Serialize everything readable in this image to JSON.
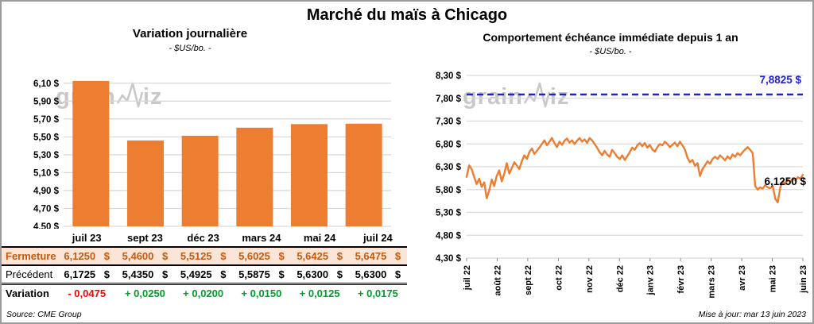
{
  "title": "Marché du maïs à Chicago",
  "watermark": {
    "prefix": "grain",
    "suffix": "iz"
  },
  "colors": {
    "bar": "#ED7D31",
    "line": "#ED7D31",
    "reference": "#2222CC",
    "close_text": "#C55A11",
    "close_bg": "#FCE4D6",
    "positive": "#009E2D",
    "negative": "#FF0000",
    "grid": "#D9D9D9",
    "watermark": "#C8C8C8"
  },
  "left_panel": {
    "chart_title": "Variation  journalière",
    "chart_subtitle": "- $US/bo. -",
    "source": "Source: CME Group",
    "table": {
      "columns": [
        "juil 23",
        "sept 23",
        "déc 23",
        "mars 24",
        "mai 24",
        "juil 24"
      ],
      "rows": [
        {
          "label": "Fermeture",
          "style": "close",
          "values": [
            "6,1250 $",
            "5,4600 $",
            "5,5125 $",
            "5,6025 $",
            "5,6425 $",
            "5,6475 $"
          ]
        },
        {
          "label": "Précédent",
          "style": "previous",
          "values": [
            "6,1725 $",
            "5,4350 $",
            "5,4925 $",
            "5,5875 $",
            "5,6300 $",
            "5,6300 $"
          ]
        },
        {
          "label": "Variation",
          "style": "variation",
          "values": [
            "- 0,0475",
            "+ 0,0250",
            "+ 0,0200",
            "+ 0,0150",
            "+ 0,0125",
            "+ 0,0175"
          ],
          "value_colors": [
            "neg",
            "pos",
            "pos",
            "pos",
            "pos",
            "pos"
          ]
        }
      ]
    }
  },
  "right_panel": {
    "chart_title": "Comportement  échéance immédiate depuis 1 an",
    "chart_subtitle": "- $US/bo. -",
    "resistance_label": "7,8825 $",
    "last_label": "6,1250 $",
    "updated": "Mise à jour: mar 13 juin 2023"
  },
  "chart_data": [
    {
      "type": "bar",
      "title": "Variation journalière",
      "ylabel": "$US/bo.",
      "categories": [
        "juil 23",
        "sept 23",
        "déc 23",
        "mars 24",
        "mai 24",
        "juil 24"
      ],
      "values": [
        6.125,
        5.46,
        5.5125,
        5.6025,
        5.6425,
        5.6475
      ],
      "ylim": [
        4.5,
        6.16
      ],
      "yticks": [
        4.5,
        4.7,
        4.9,
        5.1,
        5.3,
        5.5,
        5.7,
        5.9,
        6.1
      ],
      "grid": true,
      "legend": "none"
    },
    {
      "type": "line",
      "title": "Comportement échéance immédiate depuis 1 an",
      "ylabel": "$US/bo.",
      "x_categories": [
        "juil 22",
        "août 22",
        "sept 22",
        "oct 22",
        "nov 22",
        "déc 22",
        "janv 23",
        "févr 23",
        "mars 23",
        "avr 23",
        "mai 23",
        "juin 23"
      ],
      "ylim": [
        4.3,
        8.3
      ],
      "yticks": [
        4.3,
        4.8,
        5.3,
        5.8,
        6.3,
        6.8,
        7.3,
        7.8,
        8.3
      ],
      "reference_line": {
        "value": 7.8825,
        "label": "7,8825 $"
      },
      "last_point": {
        "value": 6.125,
        "label": "6,1250 $"
      },
      "grid": true,
      "legend": "none",
      "values": [
        6.08,
        6.33,
        6.25,
        6.08,
        5.92,
        6.04,
        5.86,
        5.96,
        5.61,
        5.78,
        6.02,
        5.88,
        6.1,
        6.22,
        5.98,
        6.15,
        6.38,
        6.15,
        6.27,
        6.4,
        6.33,
        6.25,
        6.42,
        6.55,
        6.47,
        6.62,
        6.7,
        6.58,
        6.65,
        6.72,
        6.8,
        6.88,
        6.77,
        6.85,
        6.93,
        6.82,
        6.73,
        6.85,
        6.78,
        6.87,
        6.92,
        6.83,
        6.88,
        6.8,
        6.87,
        6.93,
        6.85,
        6.9,
        6.82,
        6.93,
        6.88,
        6.8,
        6.72,
        6.62,
        6.55,
        6.65,
        6.57,
        6.52,
        6.67,
        6.6,
        6.52,
        6.47,
        6.55,
        6.45,
        6.53,
        6.62,
        6.72,
        6.67,
        6.77,
        6.82,
        6.75,
        6.82,
        6.72,
        6.78,
        6.68,
        6.63,
        6.73,
        6.8,
        6.77,
        6.85,
        6.8,
        6.73,
        6.78,
        6.83,
        6.75,
        6.85,
        6.77,
        6.68,
        6.5,
        6.4,
        6.45,
        6.32,
        6.38,
        6.1,
        6.25,
        6.33,
        6.42,
        6.37,
        6.47,
        6.52,
        6.47,
        6.55,
        6.5,
        6.44,
        6.53,
        6.47,
        6.57,
        6.52,
        6.6,
        6.55,
        6.62,
        6.68,
        6.73,
        6.67,
        6.6,
        5.88,
        5.8,
        5.85,
        5.82,
        5.9,
        5.85,
        5.83,
        5.88,
        5.6,
        5.52,
        5.85,
        5.98,
        5.93,
        6.02,
        5.97,
        6.05,
        6.0,
        6.07,
        6.04,
        6.125
      ]
    }
  ]
}
